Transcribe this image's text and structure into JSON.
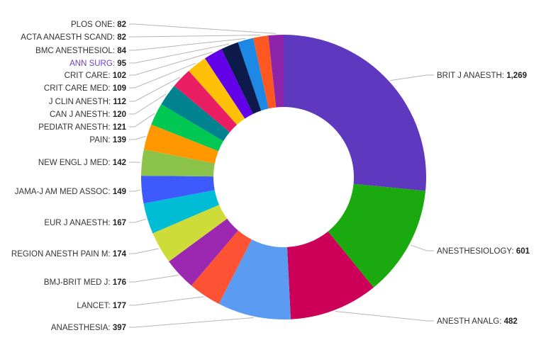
{
  "chart_data": {
    "type": "pie",
    "donut": true,
    "title": "",
    "highlighted": "ANN SURG",
    "highlight_color": "#6a3fc4",
    "slices": [
      {
        "label": "BRIT J ANAESTH",
        "value": 1269,
        "value_text": "1,269",
        "color": "#5e38be"
      },
      {
        "label": "ANESTHESIOLOGY",
        "value": 601,
        "value_text": "601",
        "color": "#1aaa0f"
      },
      {
        "label": "ANESTH ANALG",
        "value": 482,
        "value_text": "482",
        "color": "#cc0058"
      },
      {
        "label": "ANAESTHESIA",
        "value": 397,
        "value_text": "397",
        "color": "#5b9bf2"
      },
      {
        "label": "LANCET",
        "value": 177,
        "value_text": "177",
        "color": "#fe5235"
      },
      {
        "label": "BMJ-BRIT MED J",
        "value": 176,
        "value_text": "176",
        "color": "#9c27b0"
      },
      {
        "label": "REGION ANESTH PAIN M",
        "value": 174,
        "value_text": "174",
        "color": "#cddc39"
      },
      {
        "label": "EUR J ANAESTH",
        "value": 167,
        "value_text": "167",
        "color": "#00bcd4"
      },
      {
        "label": "JAMA-J AM MED ASSOC",
        "value": 149,
        "value_text": "149",
        "color": "#3d5afe"
      },
      {
        "label": "NEW ENGL J MED",
        "value": 142,
        "value_text": "142",
        "color": "#8bc34a"
      },
      {
        "label": "PAIN",
        "value": 139,
        "value_text": "139",
        "color": "#ff9800"
      },
      {
        "label": "PEDIATR ANESTH",
        "value": 121,
        "value_text": "121",
        "color": "#00c853"
      },
      {
        "label": "CAN J ANESTH",
        "value": 120,
        "value_text": "120",
        "color": "#00838f"
      },
      {
        "label": "J CLIN ANESTH",
        "value": 112,
        "value_text": "112",
        "color": "#e91e63"
      },
      {
        "label": "CRIT CARE MED",
        "value": 109,
        "value_text": "109",
        "color": "#ffc107"
      },
      {
        "label": "CRIT CARE",
        "value": 102,
        "value_text": "102",
        "color": "#6200ea"
      },
      {
        "label": "ANN SURG",
        "value": 95,
        "value_text": "95",
        "color": "#0d1b4c"
      },
      {
        "label": "BMC ANESTHESIOL",
        "value": 84,
        "value_text": "84",
        "color": "#1e88e5"
      },
      {
        "label": "ACTA ANAESTH SCAND",
        "value": 82,
        "value_text": "82",
        "color": "#ff5722"
      },
      {
        "label": "PLOS ONE",
        "value": 82,
        "value_text": "82",
        "color": "#8e24aa"
      }
    ]
  }
}
